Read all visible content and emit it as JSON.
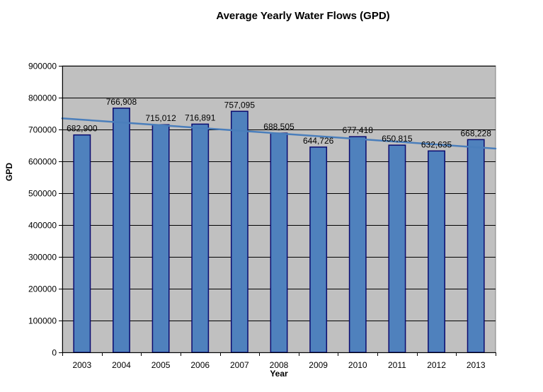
{
  "chart_data": {
    "type": "bar",
    "title": "Average Yearly Water Flows (GPD)",
    "xlabel": "Year",
    "ylabel": "GPD",
    "categories": [
      "2003",
      "2004",
      "2005",
      "2006",
      "2007",
      "2008",
      "2009",
      "2010",
      "2011",
      "2012",
      "2013"
    ],
    "values": [
      682900,
      766908,
      715012,
      716891,
      757095,
      688505,
      644726,
      677418,
      650815,
      632635,
      668228
    ],
    "data_labels": [
      "682,900",
      "766,908",
      "715,012",
      "716,891",
      "757,095",
      "688,505",
      "644,726",
      "677,418",
      "650,815",
      "632,635",
      "668,228"
    ],
    "ylim": [
      0,
      900000
    ],
    "yticks": [
      0,
      100000,
      200000,
      300000,
      400000,
      500000,
      600000,
      700000,
      800000,
      900000
    ],
    "ytick_labels": [
      "0",
      "100000",
      "200000",
      "300000",
      "400000",
      "500000",
      "600000",
      "700000",
      "800000",
      "900000"
    ],
    "grid": true,
    "legend": "none",
    "trendline": {
      "type": "linear",
      "start_value": 735000,
      "end_value": 640000
    },
    "colors": {
      "bar_fill": "#4f81bd",
      "bar_stroke": "#0a0a6e",
      "plot_background": "#c0c0c0",
      "gridline": "#000000",
      "trendline": "#4a7ebb"
    }
  }
}
